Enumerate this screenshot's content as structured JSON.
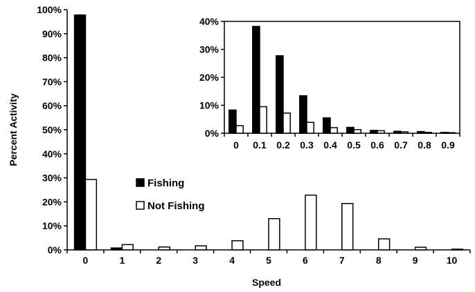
{
  "chart_data": [
    {
      "type": "bar",
      "xlabel": "Speed",
      "ylabel": "Percent Activity",
      "ylim": [
        0,
        100
      ],
      "yticks": [
        "0%",
        "10%",
        "20%",
        "30%",
        "40%",
        "50%",
        "60%",
        "70%",
        "80%",
        "90%",
        "100%"
      ],
      "categories": [
        "0",
        "1",
        "2",
        "3",
        "4",
        "5",
        "6",
        "7",
        "8",
        "9",
        "10"
      ],
      "series": [
        {
          "name": "Fishing",
          "color": "#000000",
          "values": [
            97.8,
            0.8,
            0,
            0,
            0,
            0,
            0,
            0,
            0,
            0,
            0
          ]
        },
        {
          "name": "Not Fishing",
          "color": "#ffffff",
          "values": [
            29.3,
            2.2,
            1.2,
            1.7,
            3.8,
            13,
            22.8,
            19.3,
            4.6,
            1.1,
            0.3
          ]
        }
      ],
      "legend": "center-left"
    },
    {
      "type": "bar",
      "inset": true,
      "ylim": [
        0,
        40
      ],
      "yticks": [
        "0%",
        "10%",
        "20%",
        "30%",
        "40%"
      ],
      "categories": [
        "0",
        "0.1",
        "0.2",
        "0.3",
        "0.4",
        "0.5",
        "0.6",
        "0.7",
        "0.8",
        "0.9"
      ],
      "series": [
        {
          "name": "Fishing",
          "color": "#000000",
          "values": [
            8.3,
            38.2,
            27.7,
            13.4,
            5.5,
            2.1,
            1.0,
            0.7,
            0.6,
            0.3
          ]
        },
        {
          "name": "Not Fishing",
          "color": "#ffffff",
          "values": [
            2.7,
            9.5,
            7.2,
            3.9,
            2.0,
            1.3,
            0.9,
            0.5,
            0.3,
            0.2
          ]
        }
      ]
    }
  ]
}
